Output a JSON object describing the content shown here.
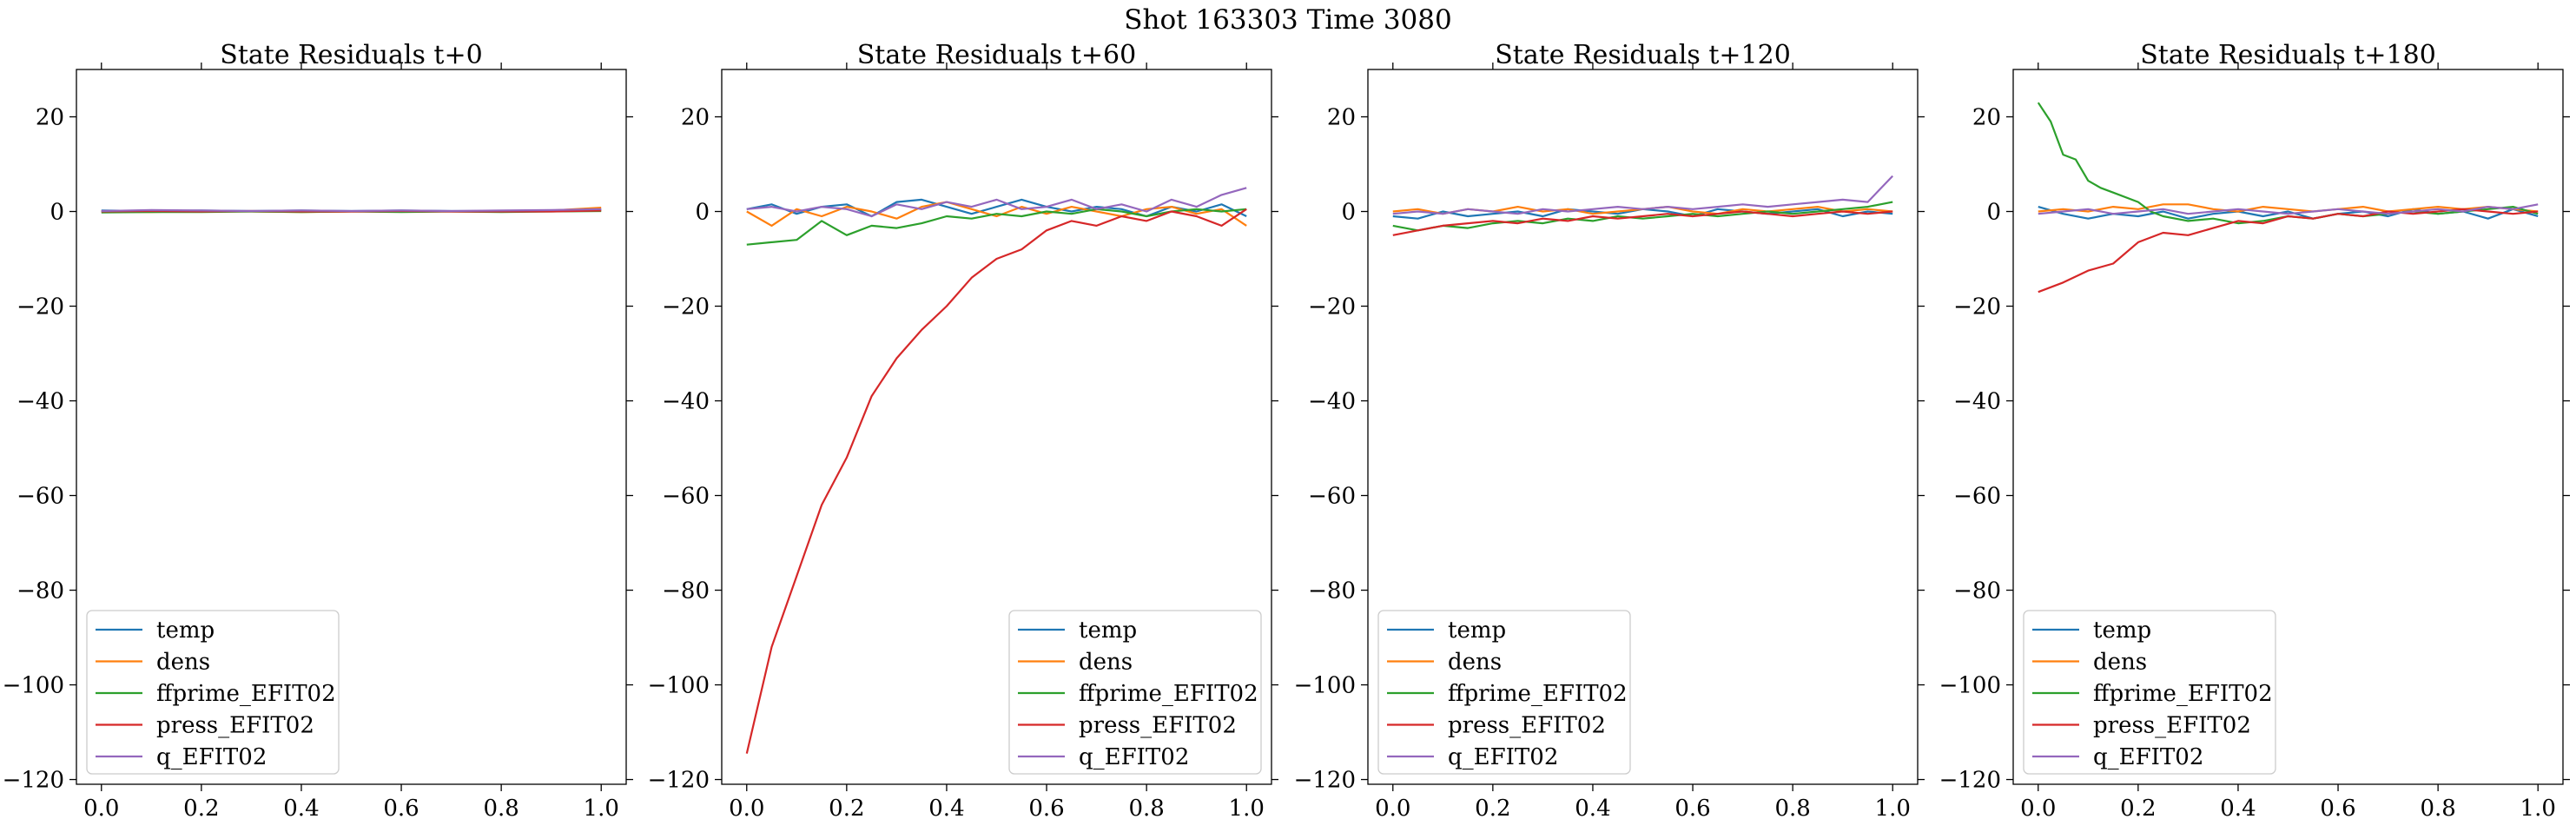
{
  "figure": {
    "suptitle": "Shot 163303   Time 3080"
  },
  "chart_data": [
    {
      "type": "line",
      "title": "State Residuals t+0",
      "xlabel": "",
      "ylabel": "",
      "xlim": [
        -0.05,
        1.05
      ],
      "ylim": [
        -121,
        30
      ],
      "xticks": [
        "0.0",
        "0.2",
        "0.4",
        "0.6",
        "0.8",
        "1.0"
      ],
      "yticks": [
        "20",
        "0",
        "−20",
        "−40",
        "−60",
        "−80",
        "−100",
        "−120"
      ],
      "legend_position": "lower-left",
      "series": [
        {
          "name": "temp",
          "color": "#1f77b4",
          "x": [
            0,
            0.1,
            0.2,
            0.3,
            0.4,
            0.5,
            0.6,
            0.7,
            0.8,
            0.9,
            1.0
          ],
          "y": [
            0.2,
            0.1,
            0.2,
            0.1,
            0.2,
            0.1,
            0.2,
            0.1,
            0.1,
            0.2,
            0.4
          ]
        },
        {
          "name": "dens",
          "color": "#ff7f0e",
          "x": [
            0,
            0.1,
            0.2,
            0.3,
            0.4,
            0.5,
            0.6,
            0.7,
            0.8,
            0.9,
            1.0
          ],
          "y": [
            0.0,
            -0.1,
            0.1,
            0.0,
            -0.1,
            0.0,
            0.1,
            0.0,
            0.0,
            0.2,
            0.8
          ]
        },
        {
          "name": "ffprime_EFIT02",
          "color": "#2ca02c",
          "x": [
            0,
            0.1,
            0.2,
            0.3,
            0.4,
            0.5,
            0.6,
            0.7,
            0.8,
            0.9,
            1.0
          ],
          "y": [
            -0.2,
            -0.1,
            -0.1,
            0.0,
            -0.1,
            0.0,
            -0.1,
            0.0,
            -0.1,
            0.0,
            0.1
          ]
        },
        {
          "name": "press_EFIT02",
          "color": "#d62728",
          "x": [
            0,
            0.1,
            0.2,
            0.3,
            0.4,
            0.5,
            0.6,
            0.7,
            0.8,
            0.9,
            1.0
          ],
          "y": [
            0.0,
            0.1,
            0.0,
            0.1,
            0.0,
            0.0,
            0.1,
            0.0,
            0.0,
            0.0,
            0.2
          ]
        },
        {
          "name": "q_EFIT02",
          "color": "#9467bd",
          "x": [
            0,
            0.1,
            0.2,
            0.3,
            0.4,
            0.5,
            0.6,
            0.7,
            0.8,
            0.9,
            1.0
          ],
          "y": [
            0.1,
            0.3,
            0.2,
            0.1,
            0.2,
            0.1,
            0.2,
            0.1,
            0.2,
            0.3,
            0.5
          ]
        }
      ]
    },
    {
      "type": "line",
      "title": "State Residuals t+60",
      "xlabel": "",
      "ylabel": "",
      "xlim": [
        -0.05,
        1.05
      ],
      "ylim": [
        -121,
        30
      ],
      "xticks": [
        "0.0",
        "0.2",
        "0.4",
        "0.6",
        "0.8",
        "1.0"
      ],
      "yticks": [
        "20",
        "0",
        "−20",
        "−40",
        "−60",
        "−80",
        "−100",
        "−120"
      ],
      "legend_position": "lower-right",
      "series": [
        {
          "name": "temp",
          "color": "#1f77b4",
          "x": [
            0,
            0.05,
            0.1,
            0.15,
            0.2,
            0.25,
            0.3,
            0.35,
            0.4,
            0.45,
            0.5,
            0.55,
            0.6,
            0.65,
            0.7,
            0.75,
            0.8,
            0.85,
            0.9,
            0.95,
            1.0
          ],
          "y": [
            0.5,
            1.5,
            -0.5,
            1.0,
            1.5,
            -1.0,
            2.0,
            2.5,
            1.0,
            -0.5,
            1.0,
            2.5,
            1.0,
            0.0,
            1.0,
            0.5,
            -1.0,
            1.0,
            0.0,
            1.5,
            -1.0
          ]
        },
        {
          "name": "dens",
          "color": "#ff7f0e",
          "x": [
            0,
            0.05,
            0.1,
            0.15,
            0.2,
            0.25,
            0.3,
            0.35,
            0.4,
            0.45,
            0.5,
            0.55,
            0.6,
            0.65,
            0.7,
            0.75,
            0.8,
            0.85,
            0.9,
            0.95,
            1.0
          ],
          "y": [
            0.0,
            -3.0,
            0.5,
            -1.0,
            1.0,
            0.0,
            -1.5,
            1.0,
            2.0,
            0.5,
            -1.0,
            1.0,
            -0.5,
            1.0,
            0.0,
            -1.0,
            0.5,
            1.0,
            -0.5,
            0.5,
            -3.0
          ]
        },
        {
          "name": "ffprime_EFIT02",
          "color": "#2ca02c",
          "x": [
            0,
            0.05,
            0.1,
            0.15,
            0.2,
            0.25,
            0.3,
            0.35,
            0.4,
            0.45,
            0.5,
            0.55,
            0.6,
            0.65,
            0.7,
            0.75,
            0.8,
            0.85,
            0.9,
            0.95,
            1.0
          ],
          "y": [
            -7.0,
            -6.5,
            -6.0,
            -2.0,
            -5.0,
            -3.0,
            -3.5,
            -2.5,
            -1.0,
            -1.5,
            -0.5,
            -1.0,
            0.0,
            -0.5,
            0.5,
            0.0,
            -1.0,
            0.0,
            0.5,
            0.0,
            0.5
          ]
        },
        {
          "name": "press_EFIT02",
          "color": "#d62728",
          "x": [
            0,
            0.05,
            0.1,
            0.15,
            0.2,
            0.25,
            0.3,
            0.35,
            0.4,
            0.45,
            0.5,
            0.55,
            0.6,
            0.65,
            0.7,
            0.75,
            0.8,
            0.85,
            0.9,
            0.95,
            1.0
          ],
          "y": [
            -114.5,
            -92.0,
            -77.0,
            -62.0,
            -52.0,
            -39.0,
            -31.0,
            -25.0,
            -20.0,
            -14.0,
            -10.0,
            -8.0,
            -4.0,
            -2.0,
            -3.0,
            -1.0,
            -2.0,
            0.0,
            -1.0,
            -3.0,
            0.5
          ]
        },
        {
          "name": "q_EFIT02",
          "color": "#9467bd",
          "x": [
            0,
            0.05,
            0.1,
            0.15,
            0.2,
            0.25,
            0.3,
            0.35,
            0.4,
            0.45,
            0.5,
            0.55,
            0.6,
            0.65,
            0.7,
            0.75,
            0.8,
            0.85,
            0.9,
            0.95,
            1.0
          ],
          "y": [
            0.5,
            1.0,
            0.0,
            1.0,
            0.5,
            -1.0,
            1.5,
            0.5,
            2.0,
            1.0,
            2.5,
            0.5,
            1.0,
            2.5,
            0.5,
            1.5,
            0.0,
            2.5,
            1.0,
            3.5,
            5.0
          ]
        }
      ]
    },
    {
      "type": "line",
      "title": "State Residuals t+120",
      "xlabel": "",
      "ylabel": "",
      "xlim": [
        -0.05,
        1.05
      ],
      "ylim": [
        -121,
        30
      ],
      "xticks": [
        "0.0",
        "0.2",
        "0.4",
        "0.6",
        "0.8",
        "1.0"
      ],
      "yticks": [
        "20",
        "0",
        "−20",
        "−40",
        "−60",
        "−80",
        "−100",
        "−120"
      ],
      "legend_position": "lower-left",
      "series": [
        {
          "name": "temp",
          "color": "#1f77b4",
          "x": [
            0,
            0.05,
            0.1,
            0.15,
            0.2,
            0.25,
            0.3,
            0.35,
            0.4,
            0.45,
            0.5,
            0.55,
            0.6,
            0.65,
            0.7,
            0.75,
            0.8,
            0.85,
            0.9,
            0.95,
            1.0
          ],
          "y": [
            -1.0,
            -1.5,
            0.0,
            -1.0,
            -0.5,
            0.0,
            -1.0,
            0.5,
            0.0,
            -0.5,
            0.5,
            0.0,
            -1.0,
            0.5,
            0.0,
            -0.5,
            0.0,
            0.5,
            -1.0,
            0.0,
            -0.5
          ]
        },
        {
          "name": "dens",
          "color": "#ff7f0e",
          "x": [
            0,
            0.05,
            0.1,
            0.15,
            0.2,
            0.25,
            0.3,
            0.35,
            0.4,
            0.45,
            0.5,
            0.55,
            0.6,
            0.65,
            0.7,
            0.75,
            0.8,
            0.85,
            0.9,
            0.95,
            1.0
          ],
          "y": [
            0.0,
            0.5,
            -0.5,
            0.5,
            0.0,
            1.0,
            0.0,
            0.5,
            -0.5,
            0.0,
            0.5,
            1.0,
            0.0,
            -0.5,
            0.5,
            0.0,
            0.5,
            1.0,
            0.0,
            0.5,
            0.0
          ]
        },
        {
          "name": "ffprime_EFIT02",
          "color": "#2ca02c",
          "x": [
            0,
            0.05,
            0.1,
            0.15,
            0.2,
            0.25,
            0.3,
            0.35,
            0.4,
            0.45,
            0.5,
            0.55,
            0.6,
            0.65,
            0.7,
            0.75,
            0.8,
            0.85,
            0.9,
            0.95,
            1.0
          ],
          "y": [
            -3.0,
            -4.0,
            -3.0,
            -3.5,
            -2.5,
            -2.0,
            -2.5,
            -1.5,
            -2.0,
            -1.0,
            -1.5,
            -1.0,
            -0.5,
            -1.0,
            -0.5,
            0.0,
            -0.5,
            0.0,
            0.5,
            1.0,
            2.0
          ]
        },
        {
          "name": "press_EFIT02",
          "color": "#d62728",
          "x": [
            0,
            0.05,
            0.1,
            0.15,
            0.2,
            0.25,
            0.3,
            0.35,
            0.4,
            0.45,
            0.5,
            0.55,
            0.6,
            0.65,
            0.7,
            0.75,
            0.8,
            0.85,
            0.9,
            0.95,
            1.0
          ],
          "y": [
            -5.0,
            -4.0,
            -3.0,
            -2.5,
            -2.0,
            -2.5,
            -1.5,
            -2.0,
            -1.0,
            -1.5,
            -1.0,
            -0.5,
            -1.0,
            -0.5,
            0.0,
            -0.5,
            -1.0,
            -0.5,
            0.0,
            -0.5,
            0.0
          ]
        },
        {
          "name": "q_EFIT02",
          "color": "#9467bd",
          "x": [
            0,
            0.05,
            0.1,
            0.15,
            0.2,
            0.25,
            0.3,
            0.35,
            0.4,
            0.45,
            0.5,
            0.55,
            0.6,
            0.65,
            0.7,
            0.75,
            0.8,
            0.85,
            0.9,
            0.95,
            1.0
          ],
          "y": [
            -0.5,
            0.0,
            -0.5,
            0.5,
            0.0,
            -0.5,
            0.5,
            0.0,
            0.5,
            1.0,
            0.5,
            1.0,
            0.5,
            1.0,
            1.5,
            1.0,
            1.5,
            2.0,
            2.5,
            2.0,
            7.5
          ]
        }
      ]
    },
    {
      "type": "line",
      "title": "State Residuals t+180",
      "xlabel": "",
      "ylabel": "",
      "xlim": [
        -0.05,
        1.05
      ],
      "ylim": [
        -121,
        30
      ],
      "xticks": [
        "0.0",
        "0.2",
        "0.4",
        "0.6",
        "0.8",
        "1.0"
      ],
      "yticks": [
        "20",
        "0",
        "−20",
        "−40",
        "−60",
        "−80",
        "−100",
        "−120"
      ],
      "legend_position": "lower-left",
      "series": [
        {
          "name": "temp",
          "color": "#1f77b4",
          "x": [
            0,
            0.05,
            0.1,
            0.15,
            0.2,
            0.25,
            0.3,
            0.35,
            0.4,
            0.45,
            0.5,
            0.55,
            0.6,
            0.65,
            0.7,
            0.75,
            0.8,
            0.85,
            0.9,
            0.95,
            1.0
          ],
          "y": [
            1.0,
            -0.5,
            -1.5,
            -0.5,
            -1.0,
            0.0,
            -1.5,
            -0.5,
            0.0,
            -1.0,
            0.0,
            -1.5,
            -0.5,
            0.0,
            -1.0,
            0.5,
            -0.5,
            0.0,
            -1.5,
            0.5,
            -1.0
          ]
        },
        {
          "name": "dens",
          "color": "#ff7f0e",
          "x": [
            0,
            0.05,
            0.1,
            0.15,
            0.2,
            0.25,
            0.3,
            0.35,
            0.4,
            0.45,
            0.5,
            0.55,
            0.6,
            0.65,
            0.7,
            0.75,
            0.8,
            0.85,
            0.9,
            0.95,
            1.0
          ],
          "y": [
            0.0,
            0.5,
            0.0,
            1.0,
            0.5,
            1.5,
            1.5,
            0.5,
            0.0,
            1.0,
            0.5,
            0.0,
            0.5,
            1.0,
            0.0,
            0.5,
            1.0,
            0.5,
            1.0,
            0.5,
            0.0
          ]
        },
        {
          "name": "ffprime_EFIT02",
          "color": "#2ca02c",
          "x": [
            0,
            0.025,
            0.05,
            0.075,
            0.1,
            0.125,
            0.15,
            0.2,
            0.225,
            0.25,
            0.3,
            0.35,
            0.4,
            0.45,
            0.5,
            0.55,
            0.6,
            0.65,
            0.7,
            0.75,
            0.8,
            0.85,
            0.9,
            0.95,
            1.0
          ],
          "y": [
            23.0,
            19.0,
            12.0,
            11.0,
            6.5,
            5.0,
            4.0,
            2.0,
            0.0,
            -1.0,
            -2.0,
            -1.5,
            -2.5,
            -2.0,
            -1.0,
            -1.5,
            -0.5,
            -1.0,
            -0.5,
            0.0,
            -0.5,
            0.0,
            0.5,
            1.0,
            -0.5
          ]
        },
        {
          "name": "press_EFIT02",
          "color": "#d62728",
          "x": [
            0,
            0.05,
            0.1,
            0.15,
            0.2,
            0.25,
            0.3,
            0.35,
            0.4,
            0.45,
            0.5,
            0.55,
            0.6,
            0.65,
            0.7,
            0.75,
            0.8,
            0.85,
            0.9,
            0.95,
            1.0
          ],
          "y": [
            -17.0,
            -15.0,
            -12.5,
            -11.0,
            -6.5,
            -4.5,
            -5.0,
            -3.5,
            -2.0,
            -2.5,
            -1.0,
            -1.5,
            -0.5,
            -1.0,
            0.0,
            -0.5,
            0.0,
            0.5,
            0.0,
            -0.5,
            0.0
          ]
        },
        {
          "name": "q_EFIT02",
          "color": "#9467bd",
          "x": [
            0,
            0.05,
            0.1,
            0.15,
            0.2,
            0.25,
            0.3,
            0.35,
            0.4,
            0.45,
            0.5,
            0.55,
            0.6,
            0.65,
            0.7,
            0.75,
            0.8,
            0.85,
            0.9,
            0.95,
            1.0
          ],
          "y": [
            -0.5,
            0.0,
            0.5,
            -0.5,
            0.0,
            0.5,
            -0.5,
            0.0,
            0.5,
            0.0,
            -0.5,
            0.0,
            0.5,
            0.0,
            -0.5,
            0.0,
            0.5,
            0.0,
            1.0,
            0.5,
            1.5
          ]
        }
      ]
    }
  ]
}
